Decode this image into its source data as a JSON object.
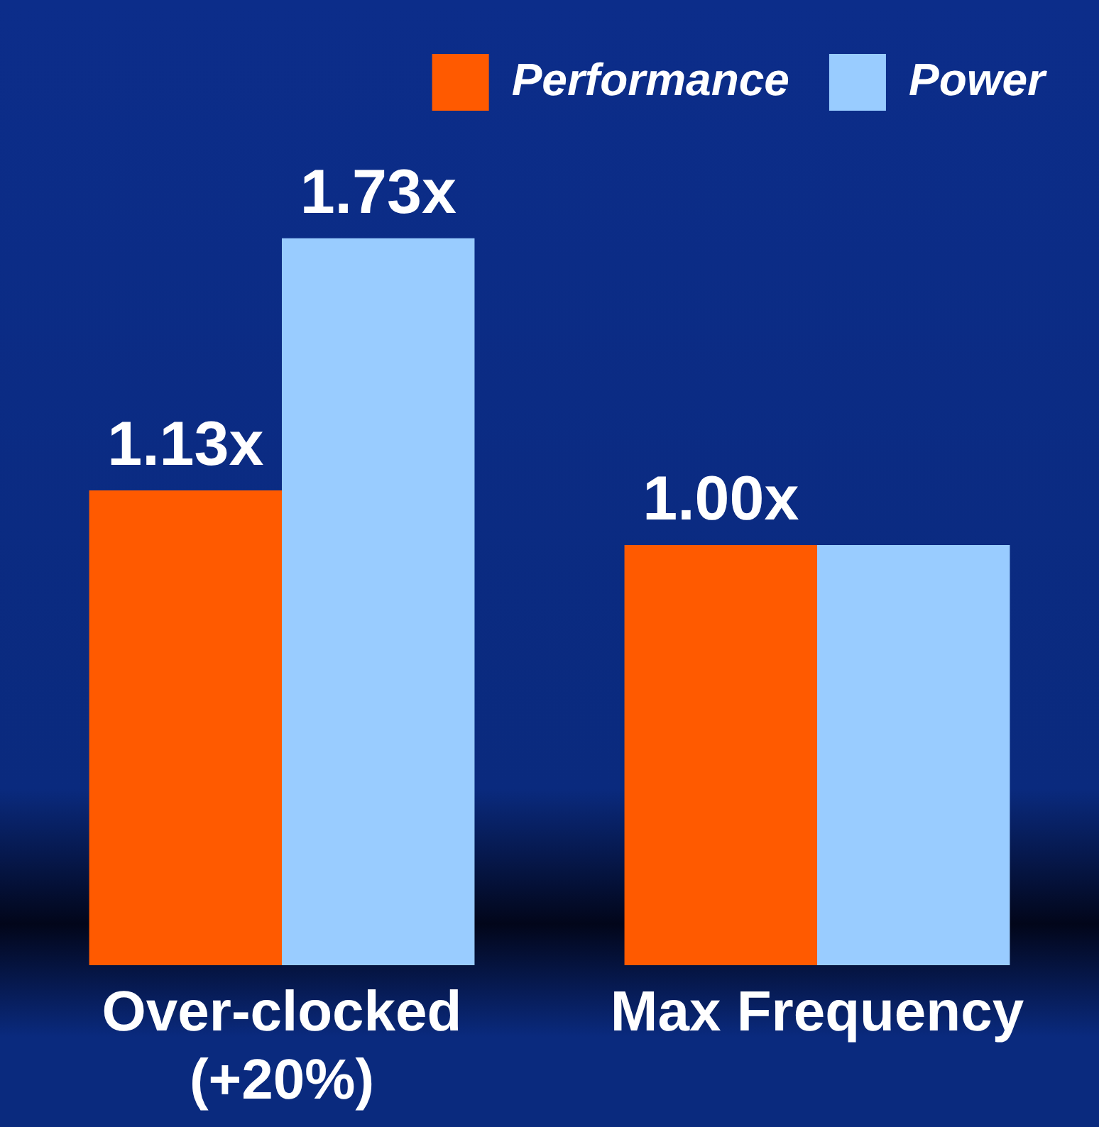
{
  "chart_data": {
    "type": "bar",
    "categories": [
      "Over-clocked (+20%)",
      "Max Frequency"
    ],
    "series": [
      {
        "name": "Performance",
        "color": "#ff5a00",
        "values": [
          1.13,
          1.0
        ],
        "value_labels": [
          "1.13x",
          "1.00x"
        ]
      },
      {
        "name": "Power",
        "color": "#99ccff",
        "values": [
          1.73,
          1.0
        ],
        "value_labels": [
          "1.73x",
          null
        ]
      }
    ],
    "legend": "top right",
    "grid": false
  }
}
